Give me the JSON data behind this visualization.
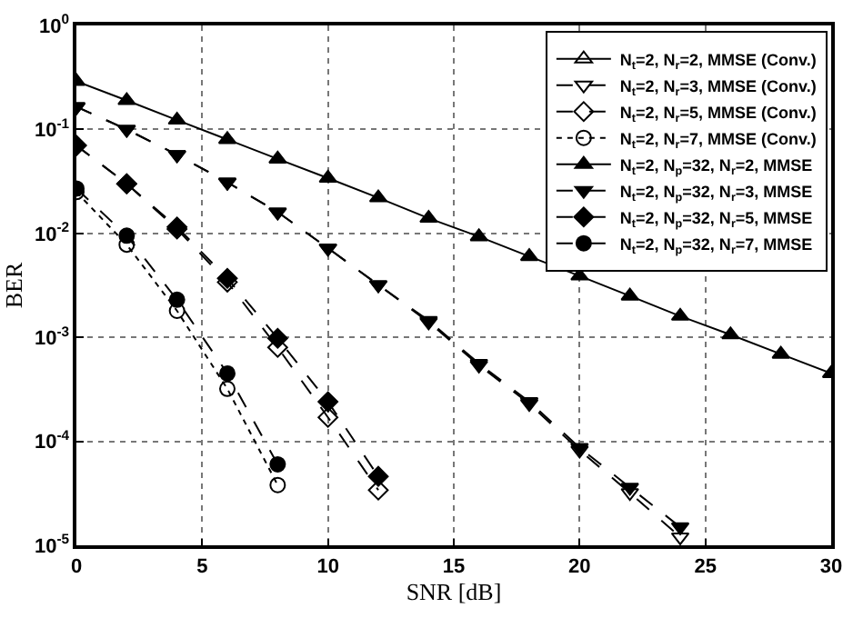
{
  "chart_data": {
    "type": "line",
    "xlabel": "SNR [dB]",
    "ylabel": "BER",
    "log": "y",
    "grid": true,
    "legend": "top right",
    "xlim": [
      0,
      30
    ],
    "xticks": [
      0,
      5,
      10,
      15,
      20,
      25,
      30
    ],
    "ylim": [
      1e-05,
      1
    ],
    "yticks": [
      {
        "value": 1,
        "label": "10$^{0}$"
      },
      {
        "value": 0.1,
        "label": "10$^{-1}$"
      },
      {
        "value": 0.01,
        "label": "10$^{-2}$"
      },
      {
        "value": 0.001,
        "label": "10$^{-3}$"
      },
      {
        "value": 0.0001,
        "label": "10$^{-4}$"
      },
      {
        "value": 1e-05,
        "label": "10$^{-5}$"
      }
    ],
    "series": [
      {
        "name": "N$_{t}$=2, N$_{r}$=2, MMSE (Conv.)",
        "color": "#000000",
        "marker": "triangle-open",
        "line_style": "solid"
      },
      {
        "name": "N$_{t}$=2, N$_{r}$=3, MMSE (Conv.)",
        "color": "#000000",
        "marker": "triangle-down-open",
        "line_style": "dashed",
        "x": [
          0,
          2,
          4,
          6,
          8,
          10,
          12,
          14,
          16,
          18,
          20,
          22,
          24
        ],
        "values": [
          0.165,
          0.1,
          0.057,
          0.031,
          0.016,
          0.0072,
          0.0032,
          0.0014,
          0.00054,
          0.00023,
          8.2e-05,
          3.2e-05,
          1.2e-05
        ]
      },
      {
        "name": "N$_{t}$=2, N$_{r}$=5, MMSE (Conv.)",
        "color": "#000000",
        "marker": "diamond-open",
        "line_style": "dashed",
        "x": [
          0,
          2,
          4,
          6,
          8,
          10,
          12
        ],
        "values": [
          0.07,
          0.03,
          0.011,
          0.0034,
          0.0008,
          0.00017,
          3.4e-05
        ]
      },
      {
        "name": "N$_{t}$=2, N$_{r}$=7, MMSE (Conv.)",
        "color": "#000000",
        "marker": "circle-open",
        "line_style": "dotted",
        "x": [
          0,
          2,
          4,
          6,
          8
        ],
        "values": [
          0.025,
          0.0078,
          0.0018,
          0.00032,
          3.8e-05
        ]
      },
      {
        "name": "N$_{t}$=2, N$_{p}$=32, N$_{r}$=2, MMSE",
        "color": "#000000",
        "marker": "triangle",
        "line_style": "solid",
        "x": [
          0,
          2,
          4,
          6,
          8,
          10,
          12,
          14,
          16,
          18,
          20,
          22,
          24,
          26,
          28,
          30
        ],
        "values": [
          0.29,
          0.19,
          0.123,
          0.08,
          0.052,
          0.034,
          0.022,
          0.014,
          0.0093,
          0.006,
          0.0039,
          0.0025,
          0.0016,
          0.00106,
          0.00069,
          0.00045
        ]
      },
      {
        "name": "N$_{t}$=2, N$_{p}$=32, N$_{r}$=3, MMSE",
        "color": "#000000",
        "marker": "triangle-down",
        "line_style": "dashed",
        "x": [
          0,
          2,
          4,
          6,
          8,
          10,
          12,
          14,
          16,
          18,
          20,
          22,
          24
        ],
        "values": [
          0.165,
          0.1,
          0.057,
          0.031,
          0.016,
          0.0072,
          0.0032,
          0.00145,
          0.00056,
          0.00024,
          8.7e-05,
          3.6e-05,
          1.5e-05
        ]
      },
      {
        "name": "N$_{t}$=2, N$_{p}$=32, N$_{r}$=5, MMSE",
        "color": "#000000",
        "marker": "diamond",
        "line_style": "dashed",
        "x": [
          0,
          2,
          4,
          6,
          8,
          10,
          12
        ],
        "values": [
          0.07,
          0.03,
          0.0115,
          0.0037,
          0.00098,
          0.00024,
          4.6e-05
        ]
      },
      {
        "name": "N$_{t}$=2, N$_{p}$=32, N$_{r}$=7, MMSE",
        "color": "#000000",
        "marker": "circle",
        "line_style": "dashed",
        "x": [
          0,
          2,
          4,
          6,
          8
        ],
        "values": [
          0.027,
          0.0095,
          0.0023,
          0.00045,
          6e-05
        ]
      }
    ]
  }
}
